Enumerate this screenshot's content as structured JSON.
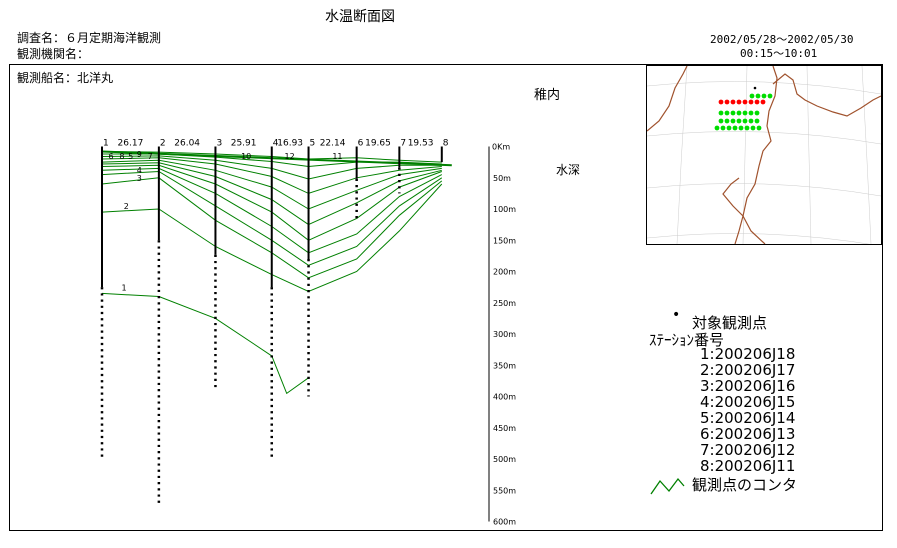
{
  "header": {
    "title": "水温断面図",
    "survey_name": "調査名：６月定期海洋観測",
    "agency_name": "観測機関名：",
    "ship_name": "観測船名：北洋丸",
    "date_range": "2002/05/28～2002/05/30",
    "time_range": "00:15～10:01"
  },
  "map": {
    "place_label": "稚内",
    "land_color": "#a0522d",
    "marker_colors": {
      "target": "#ff0000",
      "other": "#00dd00"
    }
  },
  "legend": {
    "target_points_label": "対象観測点",
    "station_number_label": "ｽﾃｰｼｮﾝ番号",
    "stations": [
      "1:200206J18",
      "2:200206J17",
      "3:200206J16",
      "4:200206J15",
      "5:200206J14",
      "6:200206J13",
      "7:200206J12",
      "8:200206J11"
    ],
    "contour_label": "観測点のコンタ"
  },
  "chart_data": {
    "type": "contour-section",
    "y_axis_label": "水深",
    "y_unit": "m",
    "ylim": [
      0,
      600
    ],
    "y_ticks": [
      "50m",
      "100m",
      "150m",
      "200m",
      "250m",
      "300m",
      "350m",
      "400m",
      "450m",
      "500m",
      "550m",
      "600m"
    ],
    "x_unit": "Km",
    "x_unit_label": "0Km",
    "stations": [
      {
        "id": "1",
        "dist": 0,
        "max_depth": 500
      },
      {
        "id": "2",
        "dist": 26.17,
        "max_depth": 575
      },
      {
        "id": "3",
        "dist": 52.21,
        "max_depth": 385
      },
      {
        "id": "4",
        "dist": 78.12,
        "max_depth": 500
      },
      {
        "id": "5",
        "dist": 95.05,
        "max_depth": 400
      },
      {
        "id": "6",
        "dist": 117.19,
        "max_depth": 115
      },
      {
        "id": "7",
        "dist": 136.84,
        "max_depth": 75
      },
      {
        "id": "8",
        "dist": 156.37,
        "max_depth": 25
      }
    ],
    "interval_labels": [
      "26.17",
      "26.04",
      "25.91",
      "16.93",
      "22.14",
      "19.65",
      "19.53"
    ],
    "contours": [
      {
        "level": "1",
        "points": [
          [
            0,
            235
          ],
          [
            26.17,
            240
          ],
          [
            52.21,
            275
          ],
          [
            78.12,
            335
          ],
          [
            85,
            395
          ],
          [
            95.05,
            370
          ]
        ]
      },
      {
        "level": "2",
        "points": [
          [
            0,
            105
          ],
          [
            26.17,
            100
          ],
          [
            52.21,
            160
          ],
          [
            78.12,
            205
          ],
          [
            95.05,
            232
          ],
          [
            117.19,
            200
          ],
          [
            136.84,
            135
          ],
          [
            156.37,
            60
          ]
        ]
      },
      {
        "level": "3",
        "points": [
          [
            0,
            60
          ],
          [
            26.17,
            50
          ],
          [
            52.21,
            118
          ],
          [
            78.12,
            170
          ],
          [
            95.05,
            210
          ],
          [
            117.19,
            180
          ],
          [
            136.84,
            110
          ],
          [
            156.37,
            55
          ]
        ]
      },
      {
        "level": "4",
        "points": [
          [
            0,
            45
          ],
          [
            26.17,
            40
          ],
          [
            52.21,
            95
          ],
          [
            78.12,
            150
          ],
          [
            95.05,
            190
          ],
          [
            117.19,
            160
          ],
          [
            136.84,
            95
          ],
          [
            156.37,
            50
          ]
        ]
      },
      {
        "level": "5",
        "points": [
          [
            0,
            38
          ],
          [
            26.17,
            35
          ],
          [
            52.21,
            75
          ],
          [
            78.12,
            128
          ],
          [
            95.05,
            170
          ],
          [
            117.19,
            140
          ],
          [
            136.84,
            80
          ],
          [
            156.37,
            45
          ]
        ]
      },
      {
        "level": "6",
        "points": [
          [
            0,
            32
          ],
          [
            26.17,
            30
          ],
          [
            52.21,
            60
          ],
          [
            78.12,
            105
          ],
          [
            95.05,
            150
          ],
          [
            117.19,
            115
          ],
          [
            136.84,
            65
          ],
          [
            156.37,
            40
          ]
        ]
      },
      {
        "level": "7",
        "points": [
          [
            0,
            28
          ],
          [
            26.17,
            26
          ],
          [
            52.21,
            48
          ],
          [
            78.12,
            85
          ],
          [
            95.05,
            125
          ],
          [
            117.19,
            90
          ],
          [
            136.84,
            55
          ],
          [
            156.37,
            38
          ]
        ]
      },
      {
        "level": "8",
        "points": [
          [
            0,
            25
          ],
          [
            26.17,
            22
          ],
          [
            52.21,
            38
          ],
          [
            78.12,
            65
          ],
          [
            95.05,
            100
          ],
          [
            117.19,
            70
          ],
          [
            136.84,
            45
          ],
          [
            156.37,
            35
          ]
        ]
      },
      {
        "level": "9",
        "points": [
          [
            0,
            20
          ],
          [
            26.17,
            18
          ],
          [
            52.21,
            28
          ],
          [
            78.12,
            48
          ],
          [
            95.05,
            75
          ],
          [
            117.19,
            50
          ],
          [
            136.84,
            38
          ],
          [
            156.37,
            32
          ]
        ]
      },
      {
        "level": "10",
        "points": [
          [
            0,
            16
          ],
          [
            26.17,
            15
          ],
          [
            52.21,
            22
          ],
          [
            78.12,
            35
          ],
          [
            95.05,
            52
          ],
          [
            117.19,
            35
          ],
          [
            136.84,
            30
          ],
          [
            156.37,
            30
          ]
        ]
      },
      {
        "level": "11",
        "points": [
          [
            0,
            12
          ],
          [
            26.17,
            12
          ],
          [
            52.21,
            17
          ],
          [
            78.12,
            24
          ],
          [
            95.05,
            32
          ],
          [
            117.19,
            25
          ],
          [
            136.84,
            25
          ],
          [
            156.37,
            28
          ]
        ]
      },
      {
        "level": "12",
        "points": [
          [
            0,
            8
          ],
          [
            26.17,
            9
          ],
          [
            52.21,
            12
          ],
          [
            78.12,
            16
          ],
          [
            95.05,
            20
          ],
          [
            117.19,
            18
          ],
          [
            136.84,
            22
          ],
          [
            156.37,
            25
          ]
        ]
      }
    ],
    "contour_labels": [
      {
        "text": "1",
        "dist": 9,
        "depth": 230
      },
      {
        "text": "2",
        "dist": 10,
        "depth": 100
      },
      {
        "text": "3",
        "dist": 16,
        "depth": 55
      },
      {
        "text": "4",
        "dist": 16,
        "depth": 42
      },
      {
        "text": "5",
        "dist": 12,
        "depth": 20
      },
      {
        "text": "6",
        "dist": 3,
        "depth": 20
      },
      {
        "text": "8",
        "dist": 8,
        "depth": 20
      },
      {
        "text": "9",
        "dist": 16,
        "depth": 17
      },
      {
        "text": "7",
        "dist": 21,
        "depth": 20
      },
      {
        "text": "10",
        "dist": 64,
        "depth": 20
      },
      {
        "text": "12",
        "dist": 84,
        "depth": 20
      },
      {
        "text": "11",
        "dist": 106,
        "depth": 20
      }
    ],
    "line_color": "#008000"
  }
}
